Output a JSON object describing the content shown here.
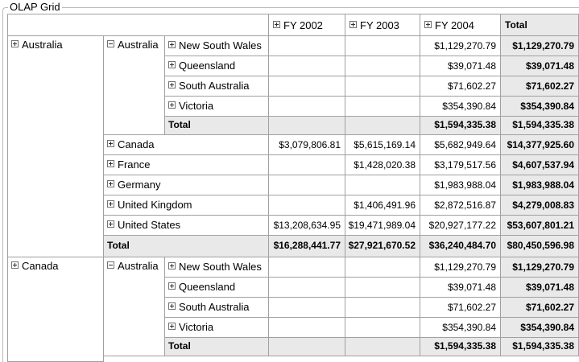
{
  "group_title": "OLAP Grid",
  "columns": [
    "FY 2002",
    "FY 2003",
    "FY 2004",
    "Total"
  ],
  "icons": {
    "expand": "plus-box-icon",
    "collapse": "minus-box-icon"
  },
  "rows": {
    "australia": {
      "label": "Australia",
      "sub": {
        "australia": {
          "label": "Australia",
          "states": [
            {
              "label": "New South Wales",
              "fy2002": "",
              "fy2003": "",
              "fy2004": "$1,129,270.79",
              "total": "$1,129,270.79"
            },
            {
              "label": "Queensland",
              "fy2002": "",
              "fy2003": "",
              "fy2004": "$39,071.48",
              "total": "$39,071.48"
            },
            {
              "label": "South Australia",
              "fy2002": "",
              "fy2003": "",
              "fy2004": "$71,602.27",
              "total": "$71,602.27"
            },
            {
              "label": "Victoria",
              "fy2002": "",
              "fy2003": "",
              "fy2004": "$354,390.84",
              "total": "$354,390.84"
            }
          ],
          "total": {
            "label": "Total",
            "fy2002": "",
            "fy2003": "",
            "fy2004": "$1,594,335.38",
            "total": "$1,594,335.38"
          }
        },
        "canada": {
          "label": "Canada",
          "fy2002": "$3,079,806.81",
          "fy2003": "$5,615,169.14",
          "fy2004": "$5,682,949.64",
          "total": "$14,377,925.60"
        },
        "france": {
          "label": "France",
          "fy2002": "",
          "fy2003": "$1,428,020.38",
          "fy2004": "$3,179,517.56",
          "total": "$4,607,537.94"
        },
        "germany": {
          "label": "Germany",
          "fy2002": "",
          "fy2003": "",
          "fy2004": "$1,983,988.04",
          "total": "$1,983,988.04"
        },
        "uk": {
          "label": "United Kingdom",
          "fy2002": "",
          "fy2003": "$1,406,491.96",
          "fy2004": "$2,872,516.87",
          "total": "$4,279,008.83"
        },
        "us": {
          "label": "United States",
          "fy2002": "$13,208,634.95",
          "fy2003": "$19,471,989.04",
          "fy2004": "$20,927,177.22",
          "total": "$53,607,801.21"
        },
        "total": {
          "label": "Total",
          "fy2002": "$16,288,441.77",
          "fy2003": "$27,921,670.52",
          "fy2004": "$36,240,484.70",
          "total": "$80,450,596.98"
        }
      }
    },
    "canada": {
      "label": "Canada",
      "sub": {
        "australia": {
          "label": "Australia",
          "states": [
            {
              "label": "New South Wales",
              "fy2002": "",
              "fy2003": "",
              "fy2004": "$1,129,270.79",
              "total": "$1,129,270.79"
            },
            {
              "label": "Queensland",
              "fy2002": "",
              "fy2003": "",
              "fy2004": "$39,071.48",
              "total": "$39,071.48"
            },
            {
              "label": "South Australia",
              "fy2002": "",
              "fy2003": "",
              "fy2004": "$71,602.27",
              "total": "$71,602.27"
            },
            {
              "label": "Victoria",
              "fy2002": "",
              "fy2003": "",
              "fy2004": "$354,390.84",
              "total": "$354,390.84"
            }
          ],
          "total": {
            "label": "Total",
            "fy2002": "",
            "fy2003": "",
            "fy2004": "$1,594,335.38",
            "total": "$1,594,335.38"
          }
        }
      }
    }
  }
}
